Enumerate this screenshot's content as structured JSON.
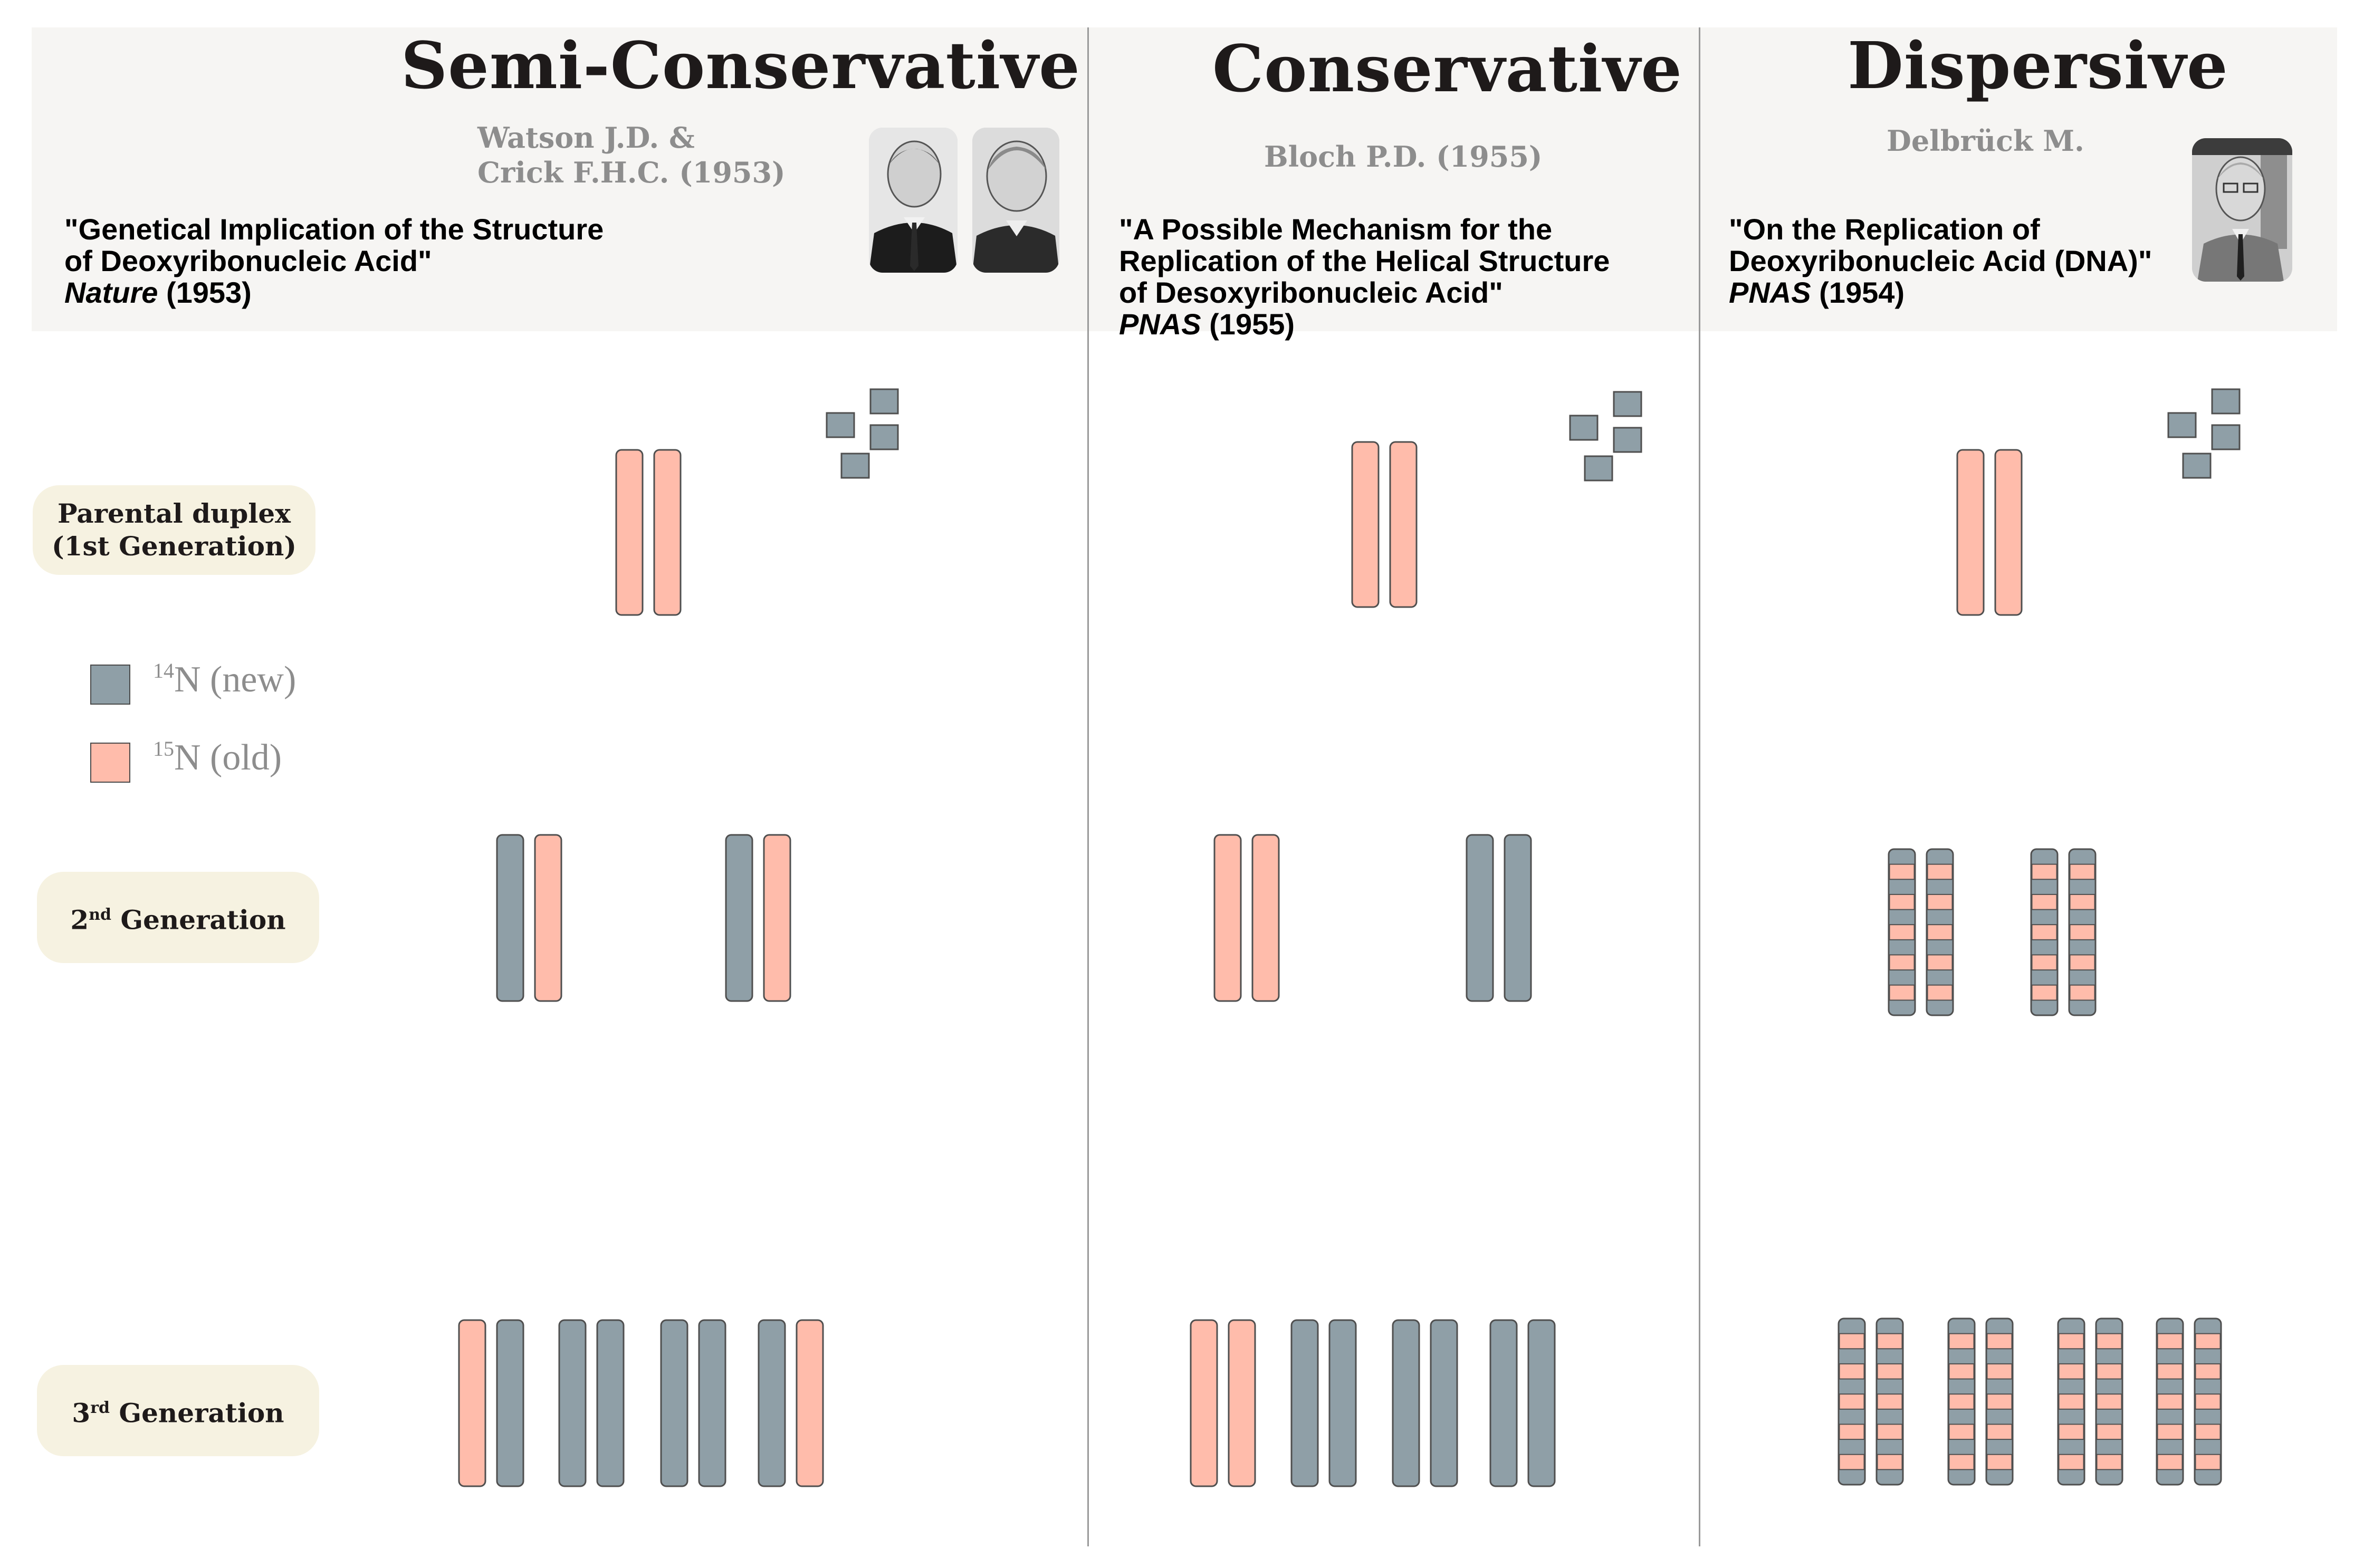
{
  "colors": {
    "new_n14": "#8f9fa7",
    "old_n15": "#ffbcab",
    "stroke": "#4f4f4f",
    "header_bg": "#f6f5f3",
    "label_bg": "#f6f2e1"
  },
  "columns": [
    {
      "title": "Semi-Conservative",
      "authors": [
        "Watson J.D. &",
        "Crick F.H.C. (1953)"
      ],
      "paper": [
        "\"Genetical Implication of the Structure",
        "of Deoxyribonucleic Acid\""
      ],
      "journal": "Nature",
      "year": " (1953)"
    },
    {
      "title": "Conservative",
      "authors": [
        "Bloch P.D. (1955)"
      ],
      "paper": [
        "\"A Possible Mechanism for the",
        "Replication of the Helical Structure",
        "of Desoxyribonucleic Acid\""
      ],
      "journal": "PNAS",
      "year": " (1955)"
    },
    {
      "title": "Dispersive",
      "authors": [
        "Delbrück M."
      ],
      "paper": [
        "\"On the Replication of",
        " Deoxyribonucleic Acid (DNA)\""
      ],
      "journal": "PNAS",
      "year": " (1954)"
    }
  ],
  "generations": [
    {
      "line1": "Parental duplex",
      "line2": "(1st Generation)"
    },
    {
      "num": "2",
      "sup": "nd",
      "rest": " Generation"
    },
    {
      "num": "3",
      "sup": "rd",
      "rest": " Generation"
    }
  ],
  "legend": [
    {
      "sup": "14",
      "text": "N (new)",
      "color_key": "new_n14"
    },
    {
      "sup": "15",
      "text": "N (old)",
      "color_key": "old_n15"
    }
  ],
  "strands": {
    "semi_conservative": {
      "gen1": [
        "old",
        "old"
      ],
      "gen2": [
        [
          "new",
          "old"
        ],
        [
          "new",
          "old"
        ]
      ],
      "gen3": [
        [
          "old",
          "new"
        ],
        [
          "new",
          "new"
        ],
        [
          "new",
          "new"
        ],
        [
          "new",
          "old"
        ]
      ]
    },
    "conservative": {
      "gen1": [
        "old",
        "old"
      ],
      "gen2": [
        [
          "old",
          "old"
        ],
        [
          "new",
          "new"
        ]
      ],
      "gen3": [
        [
          "old",
          "old"
        ],
        [
          "new",
          "new"
        ],
        [
          "new",
          "new"
        ],
        [
          "new",
          "new"
        ]
      ]
    },
    "dispersive": {
      "gen1": [
        "old",
        "old"
      ],
      "gen2": [
        [
          "mixed",
          "mixed"
        ],
        [
          "mixed",
          "mixed"
        ]
      ],
      "gen3": [
        [
          "mixed",
          "mixed"
        ],
        [
          "mixed",
          "mixed"
        ],
        [
          "mixed",
          "mixed"
        ],
        [
          "mixed",
          "mixed"
        ]
      ]
    }
  }
}
